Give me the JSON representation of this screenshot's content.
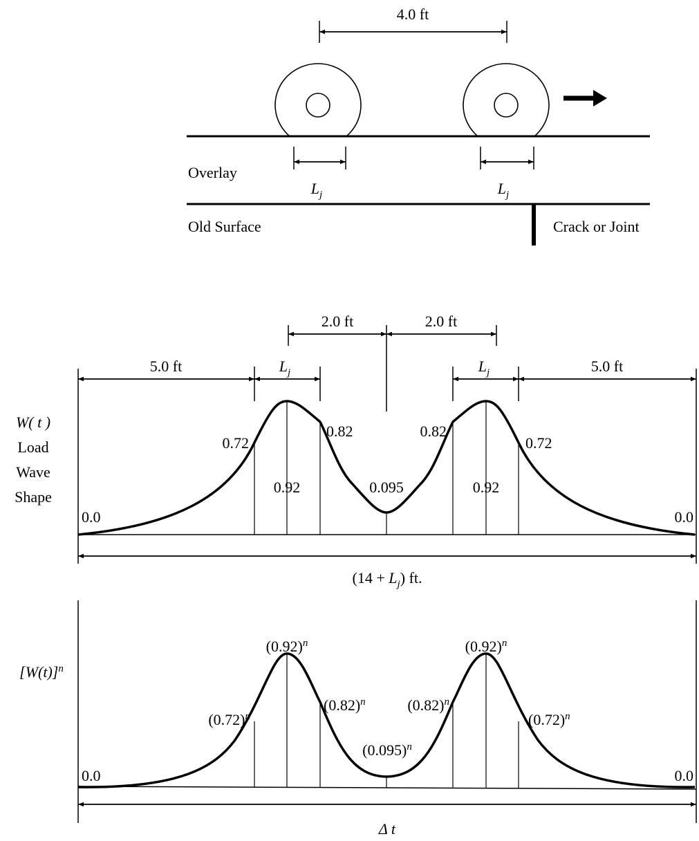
{
  "top": {
    "spacing": "4.0 ft",
    "contact_left": {
      "base": "L",
      "sub": "j"
    },
    "contact_right": {
      "base": "L",
      "sub": "j"
    },
    "overlay": "Overlay",
    "old_surface": "Old Surface",
    "crack": "Crack or Joint"
  },
  "load_wave": {
    "axis_label": [
      "W( t )",
      "Load",
      "Wave",
      "Shape"
    ],
    "dims": {
      "left": "5.0 ft",
      "contact_left": {
        "base": "L",
        "sub": "j"
      },
      "half_left": "2.0 ft",
      "half_right": "2.0 ft",
      "contact_right": {
        "base": "L",
        "sub": "j"
      },
      "right": "5.0 ft"
    },
    "point_labels": [
      "0.0",
      "0.72",
      "0.92",
      "0.82",
      "0.095",
      "0.82",
      "0.92",
      "0.72",
      "0.0"
    ],
    "width": {
      "open": "(14 + ",
      "base": "L",
      "sub": "j",
      "close": ") ft."
    }
  },
  "powered": {
    "axis_label": {
      "base": "[W(t)]",
      "sup": "n"
    },
    "point_labels": [
      {
        "base": "0.0"
      },
      {
        "base": "(0.72)",
        "sup": "n"
      },
      {
        "base": "(0.92)",
        "sup": "n"
      },
      {
        "base": "(0.82)",
        "sup": "n"
      },
      {
        "base": "(0.095)",
        "sup": "n"
      },
      {
        "base": "(0.82)",
        "sup": "n"
      },
      {
        "base": "(0.92)",
        "sup": "n"
      },
      {
        "base": "(0.72)",
        "sup": "n"
      },
      {
        "base": "0.0"
      }
    ],
    "duration": "Δ t"
  }
}
